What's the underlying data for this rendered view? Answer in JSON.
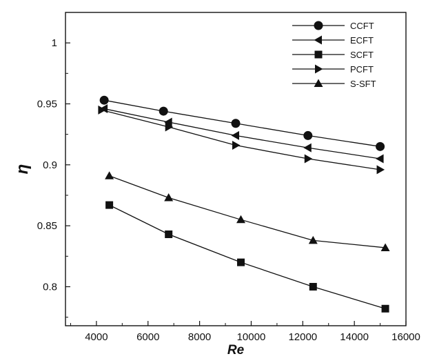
{
  "chart_data": {
    "type": "line",
    "xlabel": "Re",
    "ylabel": "η",
    "xlim": [
      2800,
      16000
    ],
    "ylim": [
      0.768,
      1.025
    ],
    "xticks": [
      4000,
      6000,
      8000,
      10000,
      12000,
      14000,
      16000
    ],
    "yticks": [
      0.8,
      0.85,
      0.9,
      0.95,
      1
    ],
    "xtick_labels": [
      "4000",
      "6000",
      "8000",
      "10000",
      "12000",
      "14000",
      "16000"
    ],
    "ytick_labels": [
      "0.8",
      "0.85",
      "0.9",
      "0.95",
      "1"
    ],
    "grid": false,
    "legend_position": "top-right",
    "series": [
      {
        "name": "CCFT",
        "marker": "circle",
        "x": [
          4300,
          6600,
          9400,
          12200,
          15000
        ],
        "y": [
          0.953,
          0.944,
          0.934,
          0.924,
          0.915
        ]
      },
      {
        "name": "ECFT",
        "marker": "triangle-left",
        "x": [
          4300,
          6800,
          9400,
          12200,
          15000
        ],
        "y": [
          0.946,
          0.935,
          0.924,
          0.914,
          0.905
        ]
      },
      {
        "name": "SCFT",
        "marker": "square",
        "x": [
          4500,
          6800,
          9600,
          12400,
          15200
        ],
        "y": [
          0.867,
          0.843,
          0.82,
          0.8,
          0.782
        ]
      },
      {
        "name": "PCFT",
        "marker": "triangle-right",
        "x": [
          4200,
          6800,
          9400,
          12200,
          15000
        ],
        "y": [
          0.945,
          0.931,
          0.916,
          0.905,
          0.896
        ]
      },
      {
        "name": "S-SFT",
        "marker": "triangle-up",
        "x": [
          4500,
          6800,
          9600,
          12400,
          15200
        ],
        "y": [
          0.891,
          0.873,
          0.855,
          0.838,
          0.832
        ]
      }
    ]
  }
}
